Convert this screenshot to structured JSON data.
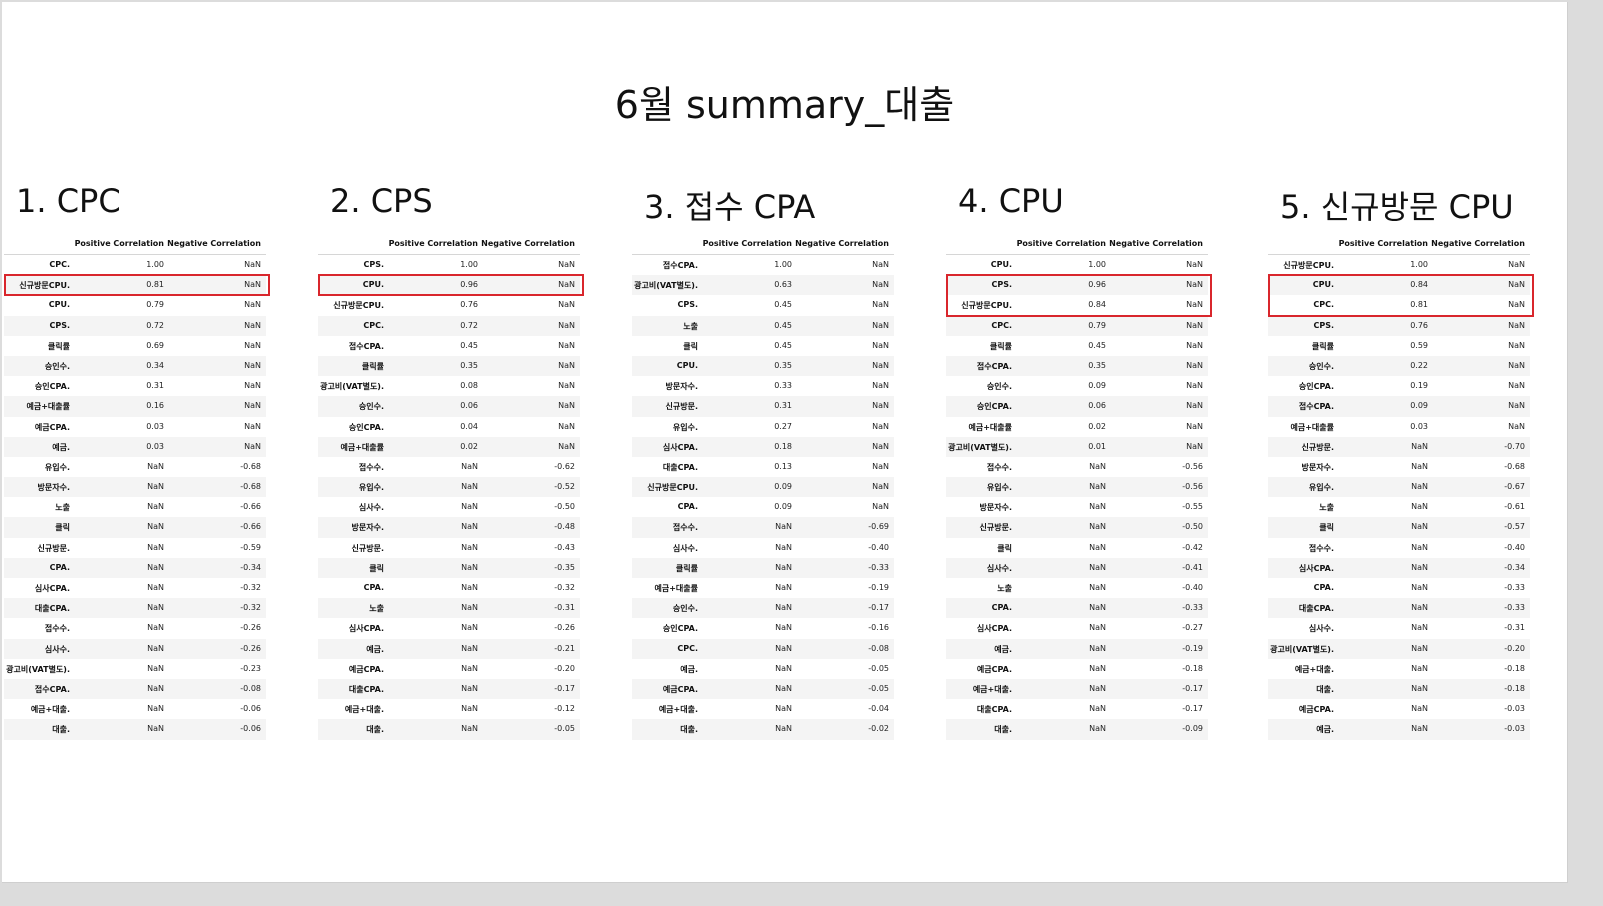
{
  "title": "6월 summary_대출",
  "columns": {
    "positive": "Positive Correlation",
    "negative": "Negative Correlation"
  },
  "highlight_color": "#d9262c",
  "sections": [
    {
      "heading": "1. CPC",
      "highlight_rows": [
        1
      ],
      "rows": [
        {
          "label": "CPC.",
          "pos": "1.00",
          "neg": "NaN"
        },
        {
          "label": "신규방문CPU.",
          "pos": "0.81",
          "neg": "NaN"
        },
        {
          "label": "CPU.",
          "pos": "0.79",
          "neg": "NaN"
        },
        {
          "label": "CPS.",
          "pos": "0.72",
          "neg": "NaN"
        },
        {
          "label": "클릭률",
          "pos": "0.69",
          "neg": "NaN"
        },
        {
          "label": "승인수.",
          "pos": "0.34",
          "neg": "NaN"
        },
        {
          "label": "승인CPA.",
          "pos": "0.31",
          "neg": "NaN"
        },
        {
          "label": "예금+대출률",
          "pos": "0.16",
          "neg": "NaN"
        },
        {
          "label": "예금CPA.",
          "pos": "0.03",
          "neg": "NaN"
        },
        {
          "label": "예금.",
          "pos": "0.03",
          "neg": "NaN"
        },
        {
          "label": "유입수.",
          "pos": "NaN",
          "neg": "-0.68"
        },
        {
          "label": "방문자수.",
          "pos": "NaN",
          "neg": "-0.68"
        },
        {
          "label": "노출",
          "pos": "NaN",
          "neg": "-0.66"
        },
        {
          "label": "클릭",
          "pos": "NaN",
          "neg": "-0.66"
        },
        {
          "label": "신규방문.",
          "pos": "NaN",
          "neg": "-0.59"
        },
        {
          "label": "CPA.",
          "pos": "NaN",
          "neg": "-0.34"
        },
        {
          "label": "심사CPA.",
          "pos": "NaN",
          "neg": "-0.32"
        },
        {
          "label": "대출CPA.",
          "pos": "NaN",
          "neg": "-0.32"
        },
        {
          "label": "접수수.",
          "pos": "NaN",
          "neg": "-0.26"
        },
        {
          "label": "심사수.",
          "pos": "NaN",
          "neg": "-0.26"
        },
        {
          "label": "광고비(VAT별도).",
          "pos": "NaN",
          "neg": "-0.23"
        },
        {
          "label": "접수CPA.",
          "pos": "NaN",
          "neg": "-0.08"
        },
        {
          "label": "예금+대출.",
          "pos": "NaN",
          "neg": "-0.06"
        },
        {
          "label": "대출.",
          "pos": "NaN",
          "neg": "-0.06"
        }
      ]
    },
    {
      "heading": "2. CPS",
      "highlight_rows": [
        1
      ],
      "rows": [
        {
          "label": "CPS.",
          "pos": "1.00",
          "neg": "NaN"
        },
        {
          "label": "CPU.",
          "pos": "0.96",
          "neg": "NaN"
        },
        {
          "label": "신규방문CPU.",
          "pos": "0.76",
          "neg": "NaN"
        },
        {
          "label": "CPC.",
          "pos": "0.72",
          "neg": "NaN"
        },
        {
          "label": "접수CPA.",
          "pos": "0.45",
          "neg": "NaN"
        },
        {
          "label": "클릭률",
          "pos": "0.35",
          "neg": "NaN"
        },
        {
          "label": "광고비(VAT별도).",
          "pos": "0.08",
          "neg": "NaN"
        },
        {
          "label": "승인수.",
          "pos": "0.06",
          "neg": "NaN"
        },
        {
          "label": "승인CPA.",
          "pos": "0.04",
          "neg": "NaN"
        },
        {
          "label": "예금+대출률",
          "pos": "0.02",
          "neg": "NaN"
        },
        {
          "label": "접수수.",
          "pos": "NaN",
          "neg": "-0.62"
        },
        {
          "label": "유입수.",
          "pos": "NaN",
          "neg": "-0.52"
        },
        {
          "label": "심사수.",
          "pos": "NaN",
          "neg": "-0.50"
        },
        {
          "label": "방문자수.",
          "pos": "NaN",
          "neg": "-0.48"
        },
        {
          "label": "신규방문.",
          "pos": "NaN",
          "neg": "-0.43"
        },
        {
          "label": "클릭",
          "pos": "NaN",
          "neg": "-0.35"
        },
        {
          "label": "CPA.",
          "pos": "NaN",
          "neg": "-0.32"
        },
        {
          "label": "노출",
          "pos": "NaN",
          "neg": "-0.31"
        },
        {
          "label": "심사CPA.",
          "pos": "NaN",
          "neg": "-0.26"
        },
        {
          "label": "예금.",
          "pos": "NaN",
          "neg": "-0.21"
        },
        {
          "label": "예금CPA.",
          "pos": "NaN",
          "neg": "-0.20"
        },
        {
          "label": "대출CPA.",
          "pos": "NaN",
          "neg": "-0.17"
        },
        {
          "label": "예금+대출.",
          "pos": "NaN",
          "neg": "-0.12"
        },
        {
          "label": "대출.",
          "pos": "NaN",
          "neg": "-0.05"
        }
      ]
    },
    {
      "heading": "3. 접수 CPA",
      "highlight_rows": [],
      "rows": [
        {
          "label": "접수CPA.",
          "pos": "1.00",
          "neg": "NaN"
        },
        {
          "label": "광고비(VAT별도).",
          "pos": "0.63",
          "neg": "NaN"
        },
        {
          "label": "CPS.",
          "pos": "0.45",
          "neg": "NaN"
        },
        {
          "label": "노출",
          "pos": "0.45",
          "neg": "NaN"
        },
        {
          "label": "클릭",
          "pos": "0.45",
          "neg": "NaN"
        },
        {
          "label": "CPU.",
          "pos": "0.35",
          "neg": "NaN"
        },
        {
          "label": "방문자수.",
          "pos": "0.33",
          "neg": "NaN"
        },
        {
          "label": "신규방문.",
          "pos": "0.31",
          "neg": "NaN"
        },
        {
          "label": "유입수.",
          "pos": "0.27",
          "neg": "NaN"
        },
        {
          "label": "심사CPA.",
          "pos": "0.18",
          "neg": "NaN"
        },
        {
          "label": "대출CPA.",
          "pos": "0.13",
          "neg": "NaN"
        },
        {
          "label": "신규방문CPU.",
          "pos": "0.09",
          "neg": "NaN"
        },
        {
          "label": "CPA.",
          "pos": "0.09",
          "neg": "NaN"
        },
        {
          "label": "접수수.",
          "pos": "NaN",
          "neg": "-0.69"
        },
        {
          "label": "심사수.",
          "pos": "NaN",
          "neg": "-0.40"
        },
        {
          "label": "클릭률",
          "pos": "NaN",
          "neg": "-0.33"
        },
        {
          "label": "예금+대출률",
          "pos": "NaN",
          "neg": "-0.19"
        },
        {
          "label": "승인수.",
          "pos": "NaN",
          "neg": "-0.17"
        },
        {
          "label": "승인CPA.",
          "pos": "NaN",
          "neg": "-0.16"
        },
        {
          "label": "CPC.",
          "pos": "NaN",
          "neg": "-0.08"
        },
        {
          "label": "예금.",
          "pos": "NaN",
          "neg": "-0.05"
        },
        {
          "label": "예금CPA.",
          "pos": "NaN",
          "neg": "-0.05"
        },
        {
          "label": "예금+대출.",
          "pos": "NaN",
          "neg": "-0.04"
        },
        {
          "label": "대출.",
          "pos": "NaN",
          "neg": "-0.02"
        }
      ]
    },
    {
      "heading": "4. CPU",
      "highlight_rows": [
        1,
        2
      ],
      "rows": [
        {
          "label": "CPU.",
          "pos": "1.00",
          "neg": "NaN"
        },
        {
          "label": "CPS.",
          "pos": "0.96",
          "neg": "NaN"
        },
        {
          "label": "신규방문CPU.",
          "pos": "0.84",
          "neg": "NaN"
        },
        {
          "label": "CPC.",
          "pos": "0.79",
          "neg": "NaN"
        },
        {
          "label": "클릭률",
          "pos": "0.45",
          "neg": "NaN"
        },
        {
          "label": "접수CPA.",
          "pos": "0.35",
          "neg": "NaN"
        },
        {
          "label": "승인수.",
          "pos": "0.09",
          "neg": "NaN"
        },
        {
          "label": "승인CPA.",
          "pos": "0.06",
          "neg": "NaN"
        },
        {
          "label": "예금+대출률",
          "pos": "0.02",
          "neg": "NaN"
        },
        {
          "label": "광고비(VAT별도).",
          "pos": "0.01",
          "neg": "NaN"
        },
        {
          "label": "접수수.",
          "pos": "NaN",
          "neg": "-0.56"
        },
        {
          "label": "유입수.",
          "pos": "NaN",
          "neg": "-0.56"
        },
        {
          "label": "방문자수.",
          "pos": "NaN",
          "neg": "-0.55"
        },
        {
          "label": "신규방문.",
          "pos": "NaN",
          "neg": "-0.50"
        },
        {
          "label": "클릭",
          "pos": "NaN",
          "neg": "-0.42"
        },
        {
          "label": "심사수.",
          "pos": "NaN",
          "neg": "-0.41"
        },
        {
          "label": "노출",
          "pos": "NaN",
          "neg": "-0.40"
        },
        {
          "label": "CPA.",
          "pos": "NaN",
          "neg": "-0.33"
        },
        {
          "label": "심사CPA.",
          "pos": "NaN",
          "neg": "-0.27"
        },
        {
          "label": "예금.",
          "pos": "NaN",
          "neg": "-0.19"
        },
        {
          "label": "예금CPA.",
          "pos": "NaN",
          "neg": "-0.18"
        },
        {
          "label": "예금+대출.",
          "pos": "NaN",
          "neg": "-0.17"
        },
        {
          "label": "대출CPA.",
          "pos": "NaN",
          "neg": "-0.17"
        },
        {
          "label": "대출.",
          "pos": "NaN",
          "neg": "-0.09"
        }
      ]
    },
    {
      "heading": "5. 신규방문 CPU",
      "highlight_rows": [
        1,
        2
      ],
      "rows": [
        {
          "label": "신규방문CPU.",
          "pos": "1.00",
          "neg": "NaN"
        },
        {
          "label": "CPU.",
          "pos": "0.84",
          "neg": "NaN"
        },
        {
          "label": "CPC.",
          "pos": "0.81",
          "neg": "NaN"
        },
        {
          "label": "CPS.",
          "pos": "0.76",
          "neg": "NaN"
        },
        {
          "label": "클릭률",
          "pos": "0.59",
          "neg": "NaN"
        },
        {
          "label": "승인수.",
          "pos": "0.22",
          "neg": "NaN"
        },
        {
          "label": "승인CPA.",
          "pos": "0.19",
          "neg": "NaN"
        },
        {
          "label": "접수CPA.",
          "pos": "0.09",
          "neg": "NaN"
        },
        {
          "label": "예금+대출률",
          "pos": "0.03",
          "neg": "NaN"
        },
        {
          "label": "신규방문.",
          "pos": "NaN",
          "neg": "-0.70"
        },
        {
          "label": "방문자수.",
          "pos": "NaN",
          "neg": "-0.68"
        },
        {
          "label": "유입수.",
          "pos": "NaN",
          "neg": "-0.67"
        },
        {
          "label": "노출",
          "pos": "NaN",
          "neg": "-0.61"
        },
        {
          "label": "클릭",
          "pos": "NaN",
          "neg": "-0.57"
        },
        {
          "label": "접수수.",
          "pos": "NaN",
          "neg": "-0.40"
        },
        {
          "label": "심사CPA.",
          "pos": "NaN",
          "neg": "-0.34"
        },
        {
          "label": "CPA.",
          "pos": "NaN",
          "neg": "-0.33"
        },
        {
          "label": "대출CPA.",
          "pos": "NaN",
          "neg": "-0.33"
        },
        {
          "label": "심사수.",
          "pos": "NaN",
          "neg": "-0.31"
        },
        {
          "label": "광고비(VAT별도).",
          "pos": "NaN",
          "neg": "-0.20"
        },
        {
          "label": "예금+대출.",
          "pos": "NaN",
          "neg": "-0.18"
        },
        {
          "label": "대출.",
          "pos": "NaN",
          "neg": "-0.18"
        },
        {
          "label": "예금CPA.",
          "pos": "NaN",
          "neg": "-0.03"
        },
        {
          "label": "예금.",
          "pos": "NaN",
          "neg": "-0.03"
        }
      ]
    }
  ]
}
